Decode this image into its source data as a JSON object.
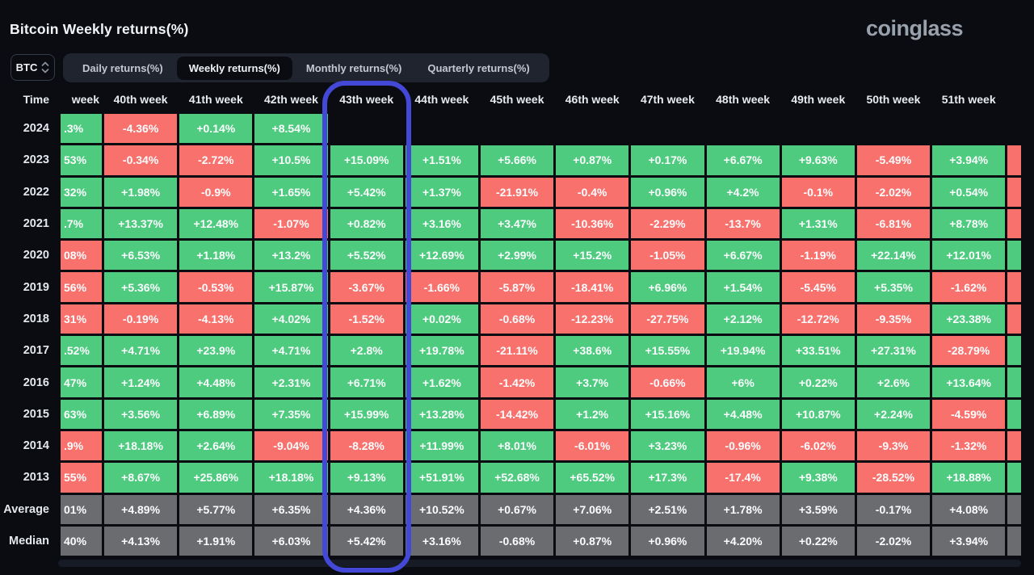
{
  "header": {
    "title": "Bitcoin Weekly returns(%)",
    "brand": "coinglass"
  },
  "controls": {
    "coin": "BTC",
    "tabs": [
      {
        "label": "Daily returns(%)",
        "active": false
      },
      {
        "label": "Weekly returns(%)",
        "active": true
      },
      {
        "label": "Monthly returns(%)",
        "active": false
      },
      {
        "label": "Quarterly returns(%)",
        "active": false
      }
    ]
  },
  "colors": {
    "positive": "#4ecb7e",
    "negative": "#f8716d",
    "neutral": "#6a6c6f",
    "highlight": "#4348d6"
  },
  "chart_data": {
    "type": "heatmap",
    "title": "Bitcoin Weekly returns(%)",
    "corner": "Time",
    "highlighted_column": "43th week",
    "columns": [
      "week",
      "40th week",
      "41th week",
      "42th week",
      "43th week",
      "44th week",
      "45th week",
      "46th week",
      "47th week",
      "48th week",
      "49th week",
      "50th week",
      "51th week"
    ],
    "rows": [
      {
        "label": "2024",
        "tail": "",
        "cells": [
          {
            "t": ".3%",
            "c": "g"
          },
          {
            "t": "-4.36%",
            "c": "r"
          },
          {
            "t": "+0.14%",
            "c": "g"
          },
          {
            "t": "+8.54%",
            "c": "g"
          },
          {
            "t": "",
            "c": ""
          },
          {
            "t": "",
            "c": ""
          },
          {
            "t": "",
            "c": ""
          },
          {
            "t": "",
            "c": ""
          },
          {
            "t": "",
            "c": ""
          },
          {
            "t": "",
            "c": ""
          },
          {
            "t": "",
            "c": ""
          },
          {
            "t": "",
            "c": ""
          },
          {
            "t": "",
            "c": ""
          }
        ]
      },
      {
        "label": "2023",
        "tail": "r",
        "cells": [
          {
            "t": "53%",
            "c": "g"
          },
          {
            "t": "-0.34%",
            "c": "r"
          },
          {
            "t": "-2.72%",
            "c": "r"
          },
          {
            "t": "+10.5%",
            "c": "g"
          },
          {
            "t": "+15.09%",
            "c": "g"
          },
          {
            "t": "+1.51%",
            "c": "g"
          },
          {
            "t": "+5.66%",
            "c": "g"
          },
          {
            "t": "+0.87%",
            "c": "g"
          },
          {
            "t": "+0.17%",
            "c": "g"
          },
          {
            "t": "+6.67%",
            "c": "g"
          },
          {
            "t": "+9.63%",
            "c": "g"
          },
          {
            "t": "-5.49%",
            "c": "r"
          },
          {
            "t": "+3.94%",
            "c": "g"
          }
        ]
      },
      {
        "label": "2022",
        "tail": "r",
        "cells": [
          {
            "t": "32%",
            "c": "g"
          },
          {
            "t": "+1.98%",
            "c": "g"
          },
          {
            "t": "-0.9%",
            "c": "r"
          },
          {
            "t": "+1.65%",
            "c": "g"
          },
          {
            "t": "+5.42%",
            "c": "g"
          },
          {
            "t": "+1.37%",
            "c": "g"
          },
          {
            "t": "-21.91%",
            "c": "r"
          },
          {
            "t": "-0.4%",
            "c": "r"
          },
          {
            "t": "+0.96%",
            "c": "g"
          },
          {
            "t": "+4.2%",
            "c": "g"
          },
          {
            "t": "-0.1%",
            "c": "r"
          },
          {
            "t": "-2.02%",
            "c": "r"
          },
          {
            "t": "+0.54%",
            "c": "g"
          }
        ]
      },
      {
        "label": "2021",
        "tail": "r",
        "cells": [
          {
            "t": ".7%",
            "c": "g"
          },
          {
            "t": "+13.37%",
            "c": "g"
          },
          {
            "t": "+12.48%",
            "c": "g"
          },
          {
            "t": "-1.07%",
            "c": "r"
          },
          {
            "t": "+0.82%",
            "c": "g"
          },
          {
            "t": "+3.16%",
            "c": "g"
          },
          {
            "t": "+3.47%",
            "c": "g"
          },
          {
            "t": "-10.36%",
            "c": "r"
          },
          {
            "t": "-2.29%",
            "c": "r"
          },
          {
            "t": "-13.7%",
            "c": "r"
          },
          {
            "t": "+1.31%",
            "c": "g"
          },
          {
            "t": "-6.81%",
            "c": "r"
          },
          {
            "t": "+8.78%",
            "c": "g"
          }
        ]
      },
      {
        "label": "2020",
        "tail": "g",
        "cells": [
          {
            "t": "08%",
            "c": "r"
          },
          {
            "t": "+6.53%",
            "c": "g"
          },
          {
            "t": "+1.18%",
            "c": "g"
          },
          {
            "t": "+13.2%",
            "c": "g"
          },
          {
            "t": "+5.52%",
            "c": "g"
          },
          {
            "t": "+12.69%",
            "c": "g"
          },
          {
            "t": "+2.99%",
            "c": "g"
          },
          {
            "t": "+15.2%",
            "c": "g"
          },
          {
            "t": "-1.05%",
            "c": "r"
          },
          {
            "t": "+6.67%",
            "c": "g"
          },
          {
            "t": "-1.19%",
            "c": "r"
          },
          {
            "t": "+22.14%",
            "c": "g"
          },
          {
            "t": "+12.01%",
            "c": "g"
          }
        ]
      },
      {
        "label": "2019",
        "tail": "r",
        "cells": [
          {
            "t": "56%",
            "c": "r"
          },
          {
            "t": "+5.36%",
            "c": "g"
          },
          {
            "t": "-0.53%",
            "c": "r"
          },
          {
            "t": "+15.87%",
            "c": "g"
          },
          {
            "t": "-3.67%",
            "c": "r"
          },
          {
            "t": "-1.66%",
            "c": "r"
          },
          {
            "t": "-5.87%",
            "c": "r"
          },
          {
            "t": "-18.41%",
            "c": "r"
          },
          {
            "t": "+6.96%",
            "c": "g"
          },
          {
            "t": "+1.54%",
            "c": "g"
          },
          {
            "t": "-5.45%",
            "c": "r"
          },
          {
            "t": "+5.35%",
            "c": "g"
          },
          {
            "t": "-1.62%",
            "c": "r"
          }
        ]
      },
      {
        "label": "2018",
        "tail": "r",
        "cells": [
          {
            "t": "31%",
            "c": "r"
          },
          {
            "t": "-0.19%",
            "c": "r"
          },
          {
            "t": "-4.13%",
            "c": "r"
          },
          {
            "t": "+4.02%",
            "c": "g"
          },
          {
            "t": "-1.52%",
            "c": "r"
          },
          {
            "t": "+0.02%",
            "c": "g"
          },
          {
            "t": "-0.68%",
            "c": "r"
          },
          {
            "t": "-12.23%",
            "c": "r"
          },
          {
            "t": "-27.75%",
            "c": "r"
          },
          {
            "t": "+2.12%",
            "c": "g"
          },
          {
            "t": "-12.72%",
            "c": "r"
          },
          {
            "t": "-9.35%",
            "c": "r"
          },
          {
            "t": "+23.38%",
            "c": "g"
          }
        ]
      },
      {
        "label": "2017",
        "tail": "g",
        "cells": [
          {
            "t": ".52%",
            "c": "g"
          },
          {
            "t": "+4.71%",
            "c": "g"
          },
          {
            "t": "+23.9%",
            "c": "g"
          },
          {
            "t": "+4.71%",
            "c": "g"
          },
          {
            "t": "+2.8%",
            "c": "g"
          },
          {
            "t": "+19.78%",
            "c": "g"
          },
          {
            "t": "-21.11%",
            "c": "r"
          },
          {
            "t": "+38.6%",
            "c": "g"
          },
          {
            "t": "+15.55%",
            "c": "g"
          },
          {
            "t": "+19.94%",
            "c": "g"
          },
          {
            "t": "+33.51%",
            "c": "g"
          },
          {
            "t": "+27.31%",
            "c": "g"
          },
          {
            "t": "-28.79%",
            "c": "r"
          }
        ]
      },
      {
        "label": "2016",
        "tail": "g",
        "cells": [
          {
            "t": "47%",
            "c": "g"
          },
          {
            "t": "+1.24%",
            "c": "g"
          },
          {
            "t": "+4.48%",
            "c": "g"
          },
          {
            "t": "+2.31%",
            "c": "g"
          },
          {
            "t": "+6.71%",
            "c": "g"
          },
          {
            "t": "+1.62%",
            "c": "g"
          },
          {
            "t": "-1.42%",
            "c": "r"
          },
          {
            "t": "+3.7%",
            "c": "g"
          },
          {
            "t": "-0.66%",
            "c": "r"
          },
          {
            "t": "+6%",
            "c": "g"
          },
          {
            "t": "+0.22%",
            "c": "g"
          },
          {
            "t": "+2.6%",
            "c": "g"
          },
          {
            "t": "+13.64%",
            "c": "g"
          }
        ]
      },
      {
        "label": "2015",
        "tail": "g",
        "cells": [
          {
            "t": "63%",
            "c": "g"
          },
          {
            "t": "+3.56%",
            "c": "g"
          },
          {
            "t": "+6.89%",
            "c": "g"
          },
          {
            "t": "+7.35%",
            "c": "g"
          },
          {
            "t": "+15.99%",
            "c": "g"
          },
          {
            "t": "+13.28%",
            "c": "g"
          },
          {
            "t": "-14.42%",
            "c": "r"
          },
          {
            "t": "+1.2%",
            "c": "g"
          },
          {
            "t": "+15.16%",
            "c": "g"
          },
          {
            "t": "+4.48%",
            "c": "g"
          },
          {
            "t": "+10.87%",
            "c": "g"
          },
          {
            "t": "+2.24%",
            "c": "g"
          },
          {
            "t": "-4.59%",
            "c": "r"
          }
        ]
      },
      {
        "label": "2014",
        "tail": "r",
        "cells": [
          {
            "t": ".9%",
            "c": "r"
          },
          {
            "t": "+18.18%",
            "c": "g"
          },
          {
            "t": "+2.64%",
            "c": "g"
          },
          {
            "t": "-9.04%",
            "c": "r"
          },
          {
            "t": "-8.28%",
            "c": "r"
          },
          {
            "t": "+11.99%",
            "c": "g"
          },
          {
            "t": "+8.01%",
            "c": "g"
          },
          {
            "t": "-6.01%",
            "c": "r"
          },
          {
            "t": "+3.23%",
            "c": "g"
          },
          {
            "t": "-0.96%",
            "c": "r"
          },
          {
            "t": "-6.02%",
            "c": "r"
          },
          {
            "t": "-9.3%",
            "c": "r"
          },
          {
            "t": "-1.32%",
            "c": "r"
          }
        ]
      },
      {
        "label": "2013",
        "tail": "g",
        "cells": [
          {
            "t": "55%",
            "c": "r"
          },
          {
            "t": "+8.67%",
            "c": "g"
          },
          {
            "t": "+25.86%",
            "c": "g"
          },
          {
            "t": "+18.18%",
            "c": "g"
          },
          {
            "t": "+9.13%",
            "c": "g"
          },
          {
            "t": "+51.91%",
            "c": "g"
          },
          {
            "t": "+52.68%",
            "c": "g"
          },
          {
            "t": "+65.52%",
            "c": "g"
          },
          {
            "t": "+17.3%",
            "c": "g"
          },
          {
            "t": "-17.4%",
            "c": "r"
          },
          {
            "t": "+9.38%",
            "c": "g"
          },
          {
            "t": "-28.52%",
            "c": "r"
          },
          {
            "t": "+18.88%",
            "c": "g"
          }
        ]
      },
      {
        "label": "Average",
        "tail": "n",
        "cells": [
          {
            "t": "01%",
            "c": "n"
          },
          {
            "t": "+4.89%",
            "c": "n"
          },
          {
            "t": "+5.77%",
            "c": "n"
          },
          {
            "t": "+6.35%",
            "c": "n"
          },
          {
            "t": "+4.36%",
            "c": "n"
          },
          {
            "t": "+10.52%",
            "c": "n"
          },
          {
            "t": "+0.67%",
            "c": "n"
          },
          {
            "t": "+7.06%",
            "c": "n"
          },
          {
            "t": "+2.51%",
            "c": "n"
          },
          {
            "t": "+1.78%",
            "c": "n"
          },
          {
            "t": "+3.59%",
            "c": "n"
          },
          {
            "t": "-0.17%",
            "c": "n"
          },
          {
            "t": "+4.08%",
            "c": "n"
          }
        ]
      },
      {
        "label": "Median",
        "tail": "n",
        "cells": [
          {
            "t": "40%",
            "c": "n"
          },
          {
            "t": "+4.13%",
            "c": "n"
          },
          {
            "t": "+1.91%",
            "c": "n"
          },
          {
            "t": "+6.03%",
            "c": "n"
          },
          {
            "t": "+5.42%",
            "c": "n"
          },
          {
            "t": "+3.16%",
            "c": "n"
          },
          {
            "t": "-0.68%",
            "c": "n"
          },
          {
            "t": "+0.87%",
            "c": "n"
          },
          {
            "t": "+0.96%",
            "c": "n"
          },
          {
            "t": "+4.20%",
            "c": "n"
          },
          {
            "t": "+0.22%",
            "c": "n"
          },
          {
            "t": "-2.02%",
            "c": "n"
          },
          {
            "t": "+3.94%",
            "c": "n"
          }
        ]
      }
    ]
  }
}
